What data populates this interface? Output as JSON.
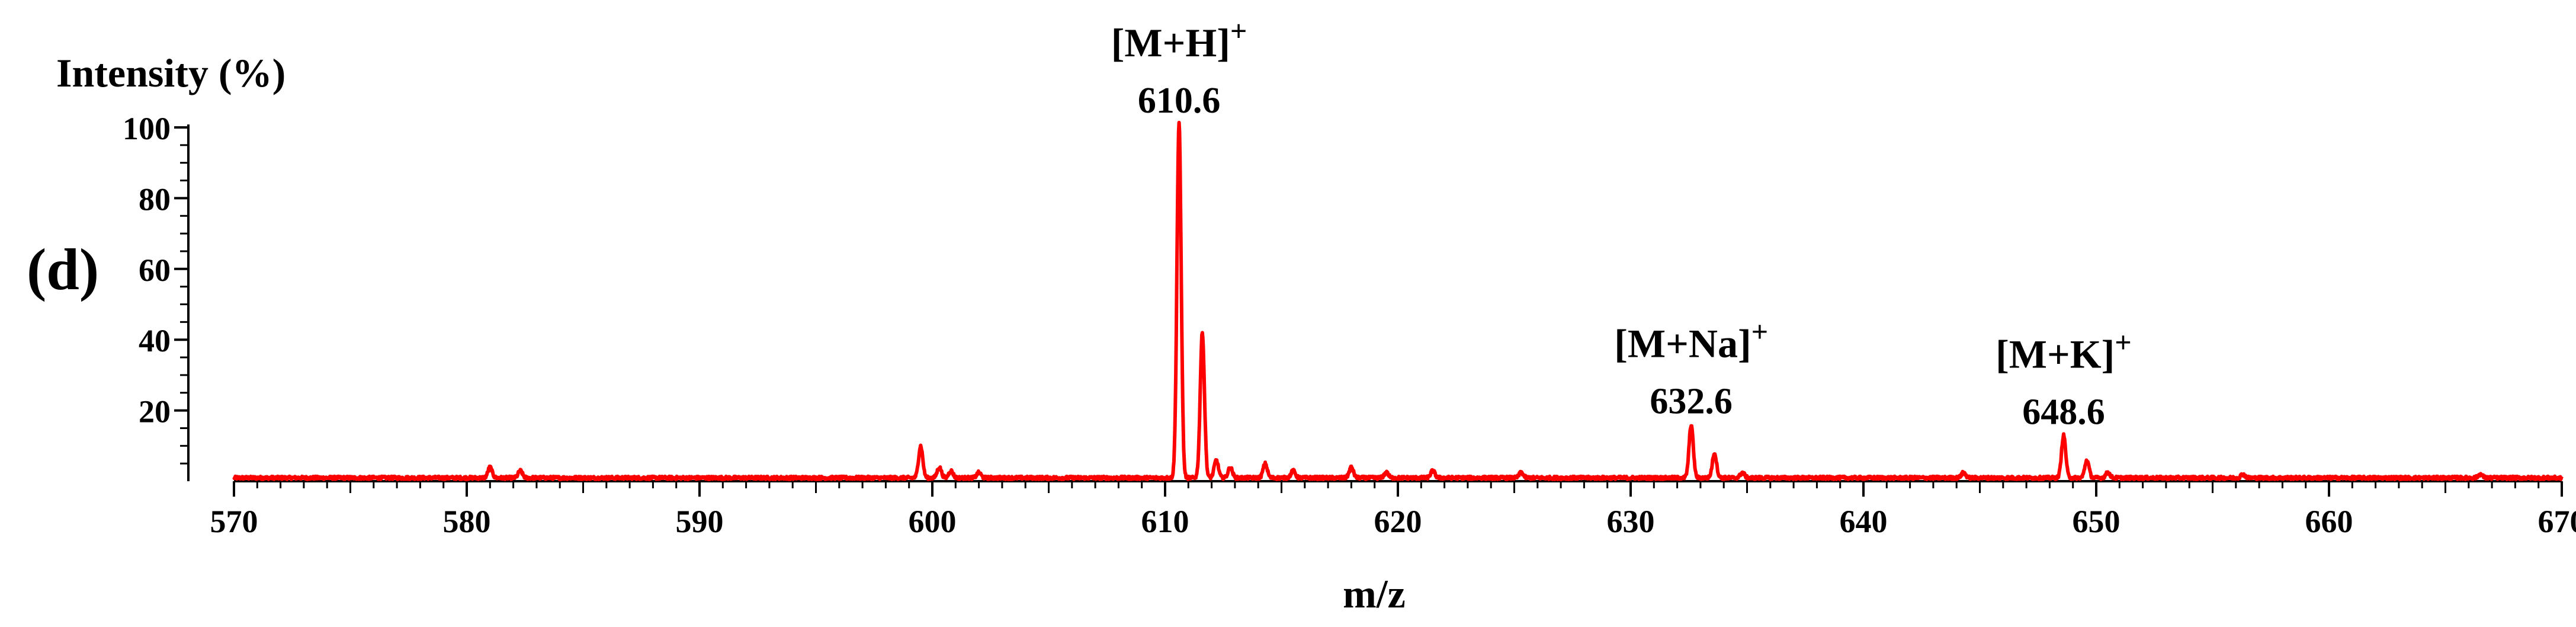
{
  "chart_data": {
    "type": "line",
    "panel_label": "(d)",
    "title": "",
    "xlabel": "m/z",
    "ylabel": "Intensity (%)",
    "xlim": [
      570,
      670
    ],
    "ylim": [
      0,
      100
    ],
    "x_ticks": [
      570,
      580,
      590,
      600,
      610,
      620,
      630,
      640,
      650,
      660,
      670
    ],
    "y_ticks": [
      20,
      40,
      60,
      80,
      100
    ],
    "grid": false,
    "legend": "none",
    "color": "#ff0000",
    "annotations": [
      {
        "ion": "[M+H]",
        "charge": "+",
        "value": "610.6",
        "x": 610.6,
        "y": 100
      },
      {
        "ion": "[M+Na]",
        "charge": "+",
        "value": "632.6",
        "x": 632.6,
        "y": 15
      },
      {
        "ion": "[M+K]",
        "charge": "+",
        "value": "648.6",
        "x": 648.6,
        "y": 12
      }
    ],
    "series": [
      {
        "peaks": [
          {
            "x": 581.0,
            "y": 3
          },
          {
            "x": 582.3,
            "y": 2
          },
          {
            "x": 599.5,
            "y": 9
          },
          {
            "x": 600.3,
            "y": 3
          },
          {
            "x": 600.8,
            "y": 2
          },
          {
            "x": 602.0,
            "y": 1.5
          },
          {
            "x": 610.6,
            "y": 100
          },
          {
            "x": 611.6,
            "y": 41
          },
          {
            "x": 612.2,
            "y": 5
          },
          {
            "x": 612.8,
            "y": 3
          },
          {
            "x": 614.3,
            "y": 4
          },
          {
            "x": 615.5,
            "y": 2
          },
          {
            "x": 618.0,
            "y": 3
          },
          {
            "x": 619.5,
            "y": 1.5
          },
          {
            "x": 621.5,
            "y": 2
          },
          {
            "x": 625.3,
            "y": 1.5
          },
          {
            "x": 632.6,
            "y": 15
          },
          {
            "x": 633.6,
            "y": 7
          },
          {
            "x": 634.8,
            "y": 1.5
          },
          {
            "x": 644.3,
            "y": 1.5
          },
          {
            "x": 648.6,
            "y": 12
          },
          {
            "x": 649.6,
            "y": 5
          },
          {
            "x": 650.5,
            "y": 1.5
          },
          {
            "x": 656.3,
            "y": 1
          },
          {
            "x": 666.5,
            "y": 1
          }
        ]
      }
    ]
  }
}
